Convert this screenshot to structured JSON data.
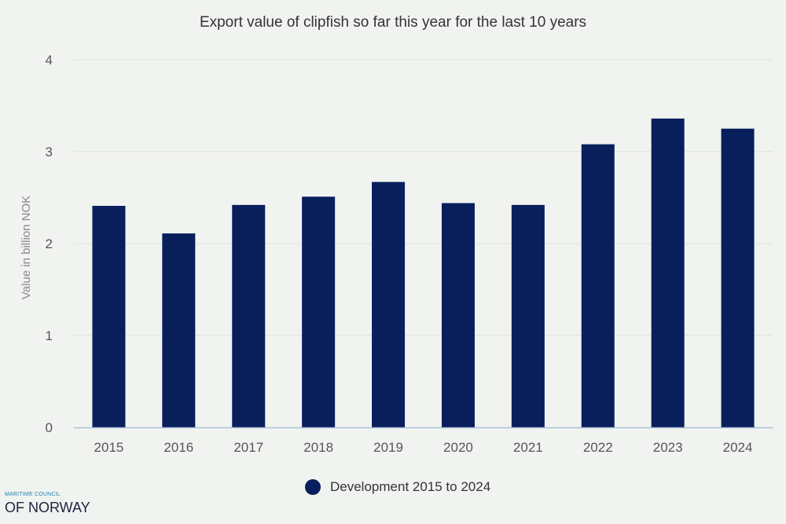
{
  "chart_data": {
    "type": "bar",
    "title": "Export value of clipfish so far this year for the last 10 years",
    "xlabel": "",
    "ylabel": "Value in billion NOK",
    "categories": [
      "2015",
      "2016",
      "2017",
      "2018",
      "2019",
      "2020",
      "2021",
      "2022",
      "2023",
      "2024"
    ],
    "series": [
      {
        "name": "Development 2015 to 2024",
        "values": [
          2.41,
          2.11,
          2.42,
          2.51,
          2.67,
          2.44,
          2.42,
          3.08,
          3.36,
          3.25
        ],
        "color": "#081f5c"
      }
    ],
    "ylim": [
      0,
      4
    ],
    "yticks": [
      "0",
      "1",
      "2",
      "3",
      "4"
    ],
    "grid": true,
    "legend_position": "bottom-center"
  },
  "logo": {
    "line1": "MARITIME COUNCIL",
    "line2": "OF NORWAY"
  },
  "colors": {
    "background": "#f1f3f0",
    "bar": "#081f5c",
    "grid": "#dde0dd",
    "logo_small": "#1f83b5"
  }
}
